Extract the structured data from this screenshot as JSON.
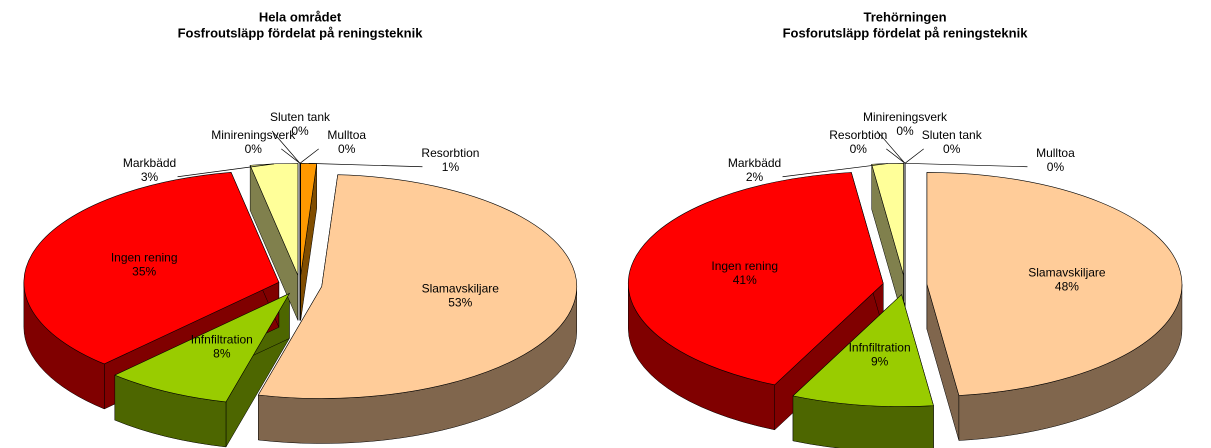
{
  "chart_data": [
    {
      "type": "pie",
      "title": "Hela området",
      "subtitle": "Fosfroutsläpp fördelat på reningsteknik",
      "categories": [
        "Resorbtion",
        "Slamavskiljare",
        "Infnfiltration",
        "Ingen rening",
        "Markbädd",
        "Minireningsverk",
        "Sluten tank",
        "Mulltoa"
      ],
      "values": [
        1,
        53,
        8,
        35,
        3,
        0,
        0,
        0
      ],
      "value_labels": [
        "1%",
        "53%",
        "8%",
        "35%",
        "3%",
        "0%",
        "0%",
        "0%"
      ],
      "colors": [
        "#ff9900",
        "#ffcc99",
        "#99cc00",
        "#ff0000",
        "#ffff99",
        "#c0c0c0",
        "#ffffff",
        "#993366"
      ]
    },
    {
      "type": "pie",
      "title": "Trehörningen",
      "subtitle": "Fosforutsläpp fördelat på reningsteknik",
      "categories": [
        "Resorbtion",
        "Slamavskiljare",
        "Infnfiltration",
        "Ingen rening",
        "Markbädd",
        "Minireningsverk",
        "Sluten tank",
        "Mulltoa"
      ],
      "values": [
        0,
        48,
        9,
        41,
        2,
        0,
        0,
        0
      ],
      "value_labels": [
        "0%",
        "48%",
        "9%",
        "41%",
        "2%",
        "0%",
        "0%",
        "0%"
      ],
      "colors": [
        "#ff9900",
        "#ffcc99",
        "#99cc00",
        "#ff0000",
        "#ffff99",
        "#c0c0c0",
        "#ffffff",
        "#993366"
      ]
    }
  ]
}
